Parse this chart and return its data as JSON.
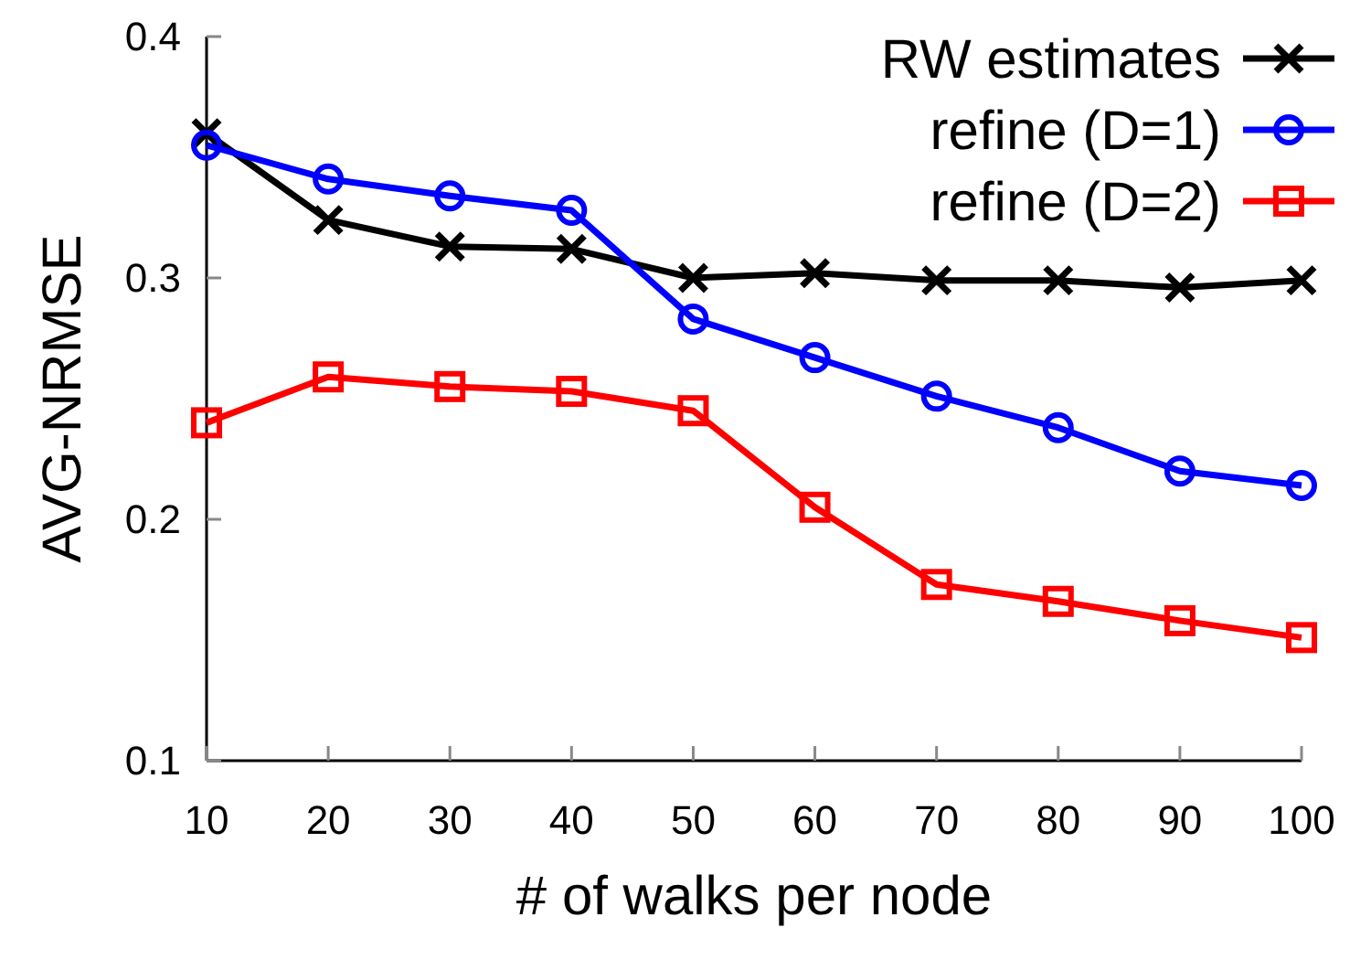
{
  "chart_data": {
    "type": "line",
    "xlabel": "# of walks per node",
    "ylabel": "AVG-NRMSE",
    "x": [
      10,
      20,
      30,
      40,
      50,
      60,
      70,
      80,
      90,
      100
    ],
    "xlim": [
      10,
      100
    ],
    "xticks": [
      10,
      20,
      30,
      40,
      50,
      60,
      70,
      80,
      90,
      100
    ],
    "ylim": [
      0.1,
      0.4
    ],
    "yticks": [
      0.1,
      0.2,
      0.3,
      0.4
    ],
    "legend": "top right",
    "grid": false,
    "line_style": "solid",
    "series": [
      {
        "name": "RW estimates",
        "color": "#000000",
        "marker": "cross",
        "values": [
          0.36,
          0.324,
          0.313,
          0.312,
          0.3,
          0.302,
          0.299,
          0.299,
          0.296,
          0.299
        ]
      },
      {
        "name": "refine (D=1)",
        "color": "#0000ff",
        "marker": "circle",
        "values": [
          0.355,
          0.341,
          0.334,
          0.328,
          0.283,
          0.267,
          0.251,
          0.238,
          0.22,
          0.214
        ]
      },
      {
        "name": "refine (D=2)",
        "color": "#ff0000",
        "marker": "square",
        "values": [
          0.24,
          0.259,
          0.255,
          0.253,
          0.245,
          0.205,
          0.173,
          0.166,
          0.158,
          0.151
        ]
      }
    ]
  }
}
